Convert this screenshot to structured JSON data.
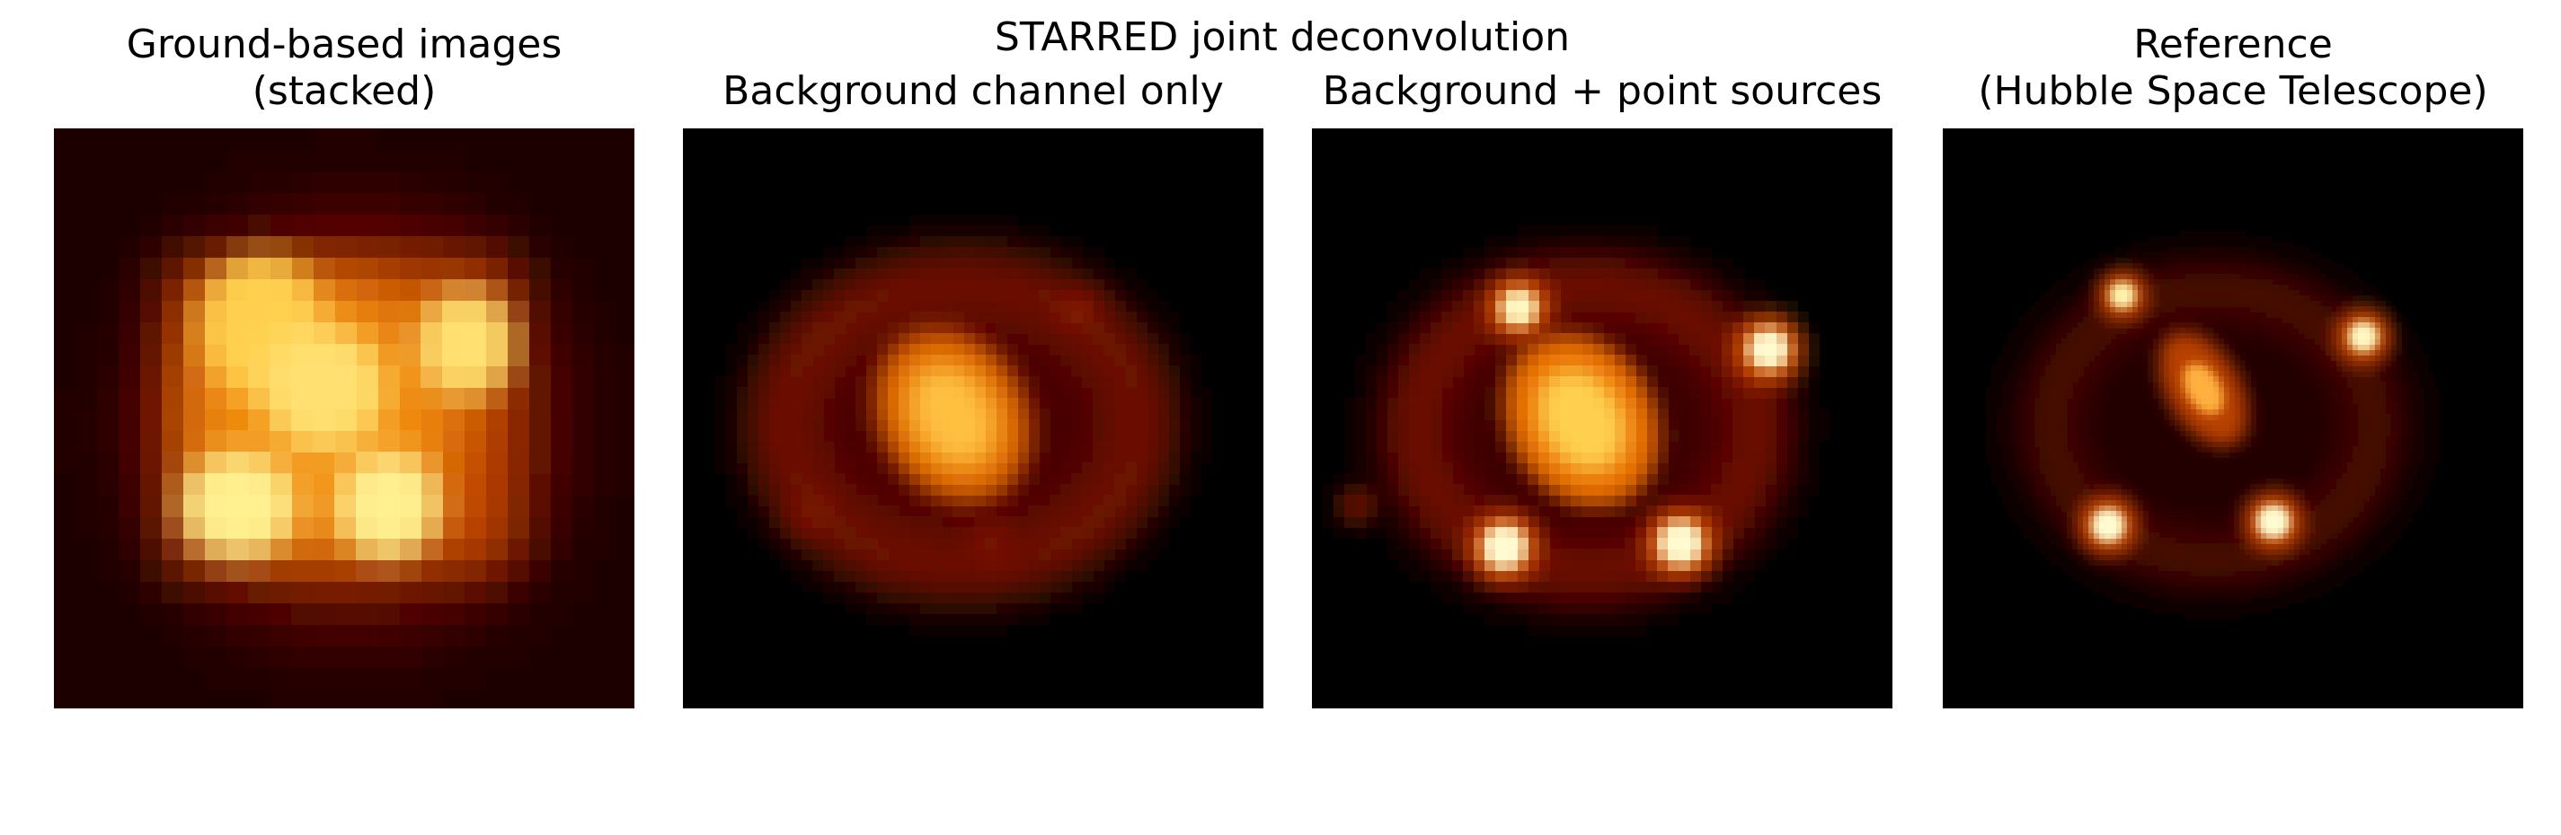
{
  "figure": {
    "suptitle": "STARRED joint deconvolution",
    "panels": [
      {
        "title_line1": "Ground-based images",
        "title_line2": "(stacked)"
      },
      {
        "title_line1": "Background channel only"
      },
      {
        "title_line1": "Background + point sources"
      },
      {
        "title_line1": "Reference",
        "title_line2": "(Hubble Space Telescope)"
      }
    ],
    "colormap": "afmhot",
    "colors": {
      "background": "#ffffff",
      "image_floor": "#000000"
    }
  }
}
